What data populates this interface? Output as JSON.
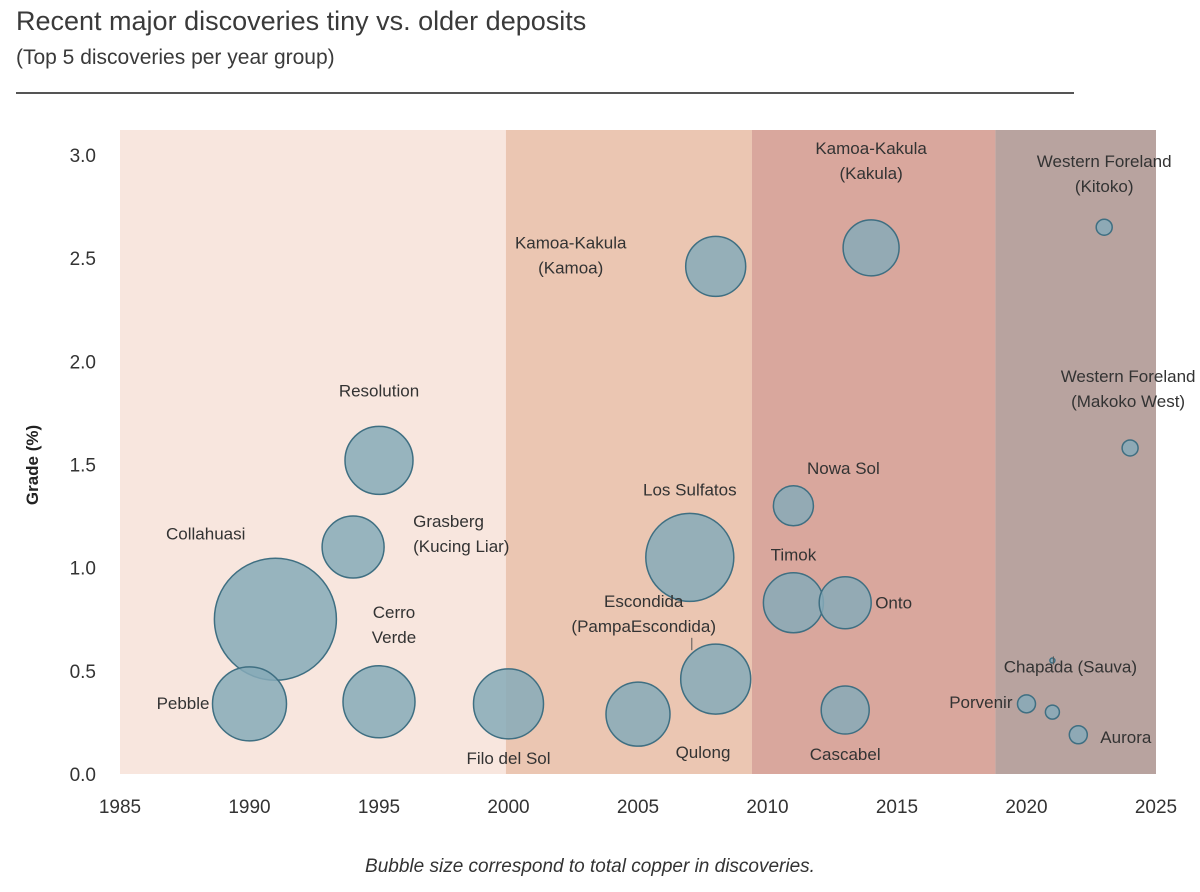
{
  "header": {
    "title": "Recent major discoveries tiny vs. older deposits",
    "subtitle": "(Top 5 discoveries per year group)"
  },
  "footnote": "Bubble size correspond to total copper in discoveries.",
  "colors": {
    "bubble_fill": "#86aab8",
    "bubble_stroke": "#3f6f82",
    "band_1": "#f8e6de",
    "band_2": "#ebc6b2",
    "band_3": "#d9a79d",
    "band_4": "#b8a39f"
  },
  "chart_data": {
    "type": "scatter",
    "subtype": "bubble",
    "title": "Recent major discoveries tiny vs. older deposits",
    "subtitle": "(Top 5 discoveries per year group)",
    "xlabel": "",
    "ylabel": "Grade (%)",
    "xlim": [
      1985,
      2025
    ],
    "ylim": [
      0.0,
      3.0
    ],
    "xticks": [
      1985,
      1990,
      1995,
      2000,
      2005,
      2010,
      2015,
      2020,
      2025
    ],
    "yticks": [
      "0.0",
      "0.5",
      "1.0",
      "1.5",
      "2.0",
      "2.5",
      "3.0"
    ],
    "grid": false,
    "size_note": "Bubble size correspond to total copper in discoveries.",
    "bands": [
      {
        "from": 1985,
        "to": 1999.9,
        "color": "#f8e6de"
      },
      {
        "from": 1999.9,
        "to": 2009.4,
        "color": "#ebc6b2"
      },
      {
        "from": 2009.4,
        "to": 2018.8,
        "color": "#d9a79d"
      },
      {
        "from": 2018.8,
        "to": 2025,
        "color": "#b8a39f"
      }
    ],
    "points": [
      {
        "label": "Collahuasi",
        "x": 1991,
        "y": 0.75,
        "size": 61
      },
      {
        "label": "Pebble",
        "x": 1990,
        "y": 0.34,
        "size": 37
      },
      {
        "label": "Grasberg\n(Kucing Liar)",
        "x": 1994,
        "y": 1.1,
        "size": 31
      },
      {
        "label": "Resolution",
        "x": 1995,
        "y": 1.52,
        "size": 34
      },
      {
        "label": "Cerro\nVerde",
        "x": 1995,
        "y": 0.35,
        "size": 36
      },
      {
        "label": "Filo del Sol",
        "x": 2000,
        "y": 0.34,
        "size": 35
      },
      {
        "label": "Qulong",
        "x": 2005,
        "y": 0.29,
        "size": 32
      },
      {
        "label": "Los Sulfatos",
        "x": 2007,
        "y": 1.05,
        "size": 44
      },
      {
        "label": "Escondida\n(PampaEscondida)",
        "x": 2008,
        "y": 0.46,
        "size": 35
      },
      {
        "label": "Kamoa-Kakula\n(Kamoa)",
        "x": 2008,
        "y": 2.46,
        "size": 30
      },
      {
        "label": "Kamoa-Kakula\n(Kakula)",
        "x": 2014,
        "y": 2.55,
        "size": 28
      },
      {
        "label": "Nowa Sol",
        "x": 2011,
        "y": 1.3,
        "size": 20
      },
      {
        "label": "Timok",
        "x": 2011,
        "y": 0.83,
        "size": 30
      },
      {
        "label": "Onto",
        "x": 2013,
        "y": 0.83,
        "size": 26
      },
      {
        "label": "Cascabel",
        "x": 2013,
        "y": 0.31,
        "size": 24
      },
      {
        "label": "Western Foreland\n(Kitoko)",
        "x": 2023,
        "y": 2.65,
        "size": 8
      },
      {
        "label": "Western Foreland\n(Makoko West)",
        "x": 2024,
        "y": 1.58,
        "size": 8
      },
      {
        "label": "Chapada (Sauva)",
        "x": 2021,
        "y": 0.55,
        "size": 2
      },
      {
        "label": "Porvenir",
        "x": 2020,
        "y": 0.34,
        "size": 9
      },
      {
        "label": "Aurora",
        "x": 2022,
        "y": 0.19,
        "size": 9
      },
      {
        "label": "",
        "x": 2021,
        "y": 0.3,
        "size": 7
      }
    ]
  }
}
